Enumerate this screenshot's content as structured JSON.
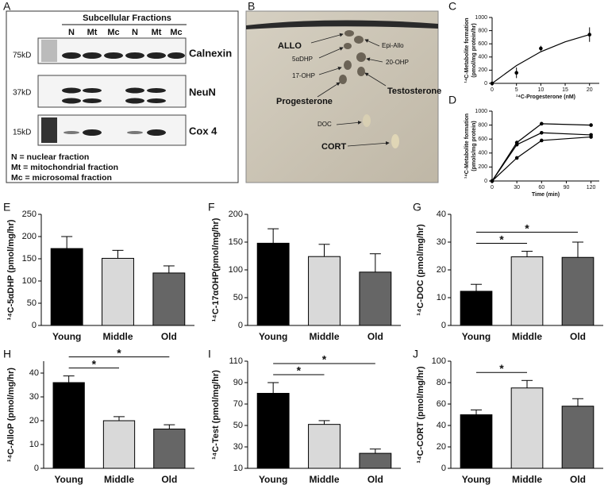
{
  "blot": {
    "label": "A",
    "title": "Subcellular Fractions",
    "lanes": [
      "N",
      "Mt",
      "Mc",
      "N",
      "Mt",
      "Mc"
    ],
    "markers": [
      "75kD",
      "37kD",
      "15kD"
    ],
    "proteins": [
      "Calnexin",
      "NeuN",
      "Cox 4"
    ],
    "legend": [
      "N = nuclear fraction",
      "Mt = mitochondrial fraction",
      "Mc = microsomal fraction"
    ]
  },
  "tlc": {
    "label": "B",
    "spots": [
      "ALLO",
      "Epi-Allo",
      "5αDHP",
      "20-OHP",
      "17-OHP",
      "Progesterone",
      "Testosterone",
      "DOC",
      "CORT"
    ]
  },
  "chart_data": [
    {
      "type": "line",
      "label": "C",
      "xlabel": "¹⁴C-Progesterone (nM)",
      "ylabel": [
        "¹⁴C-Metabolite formation",
        "(pmol/mg protein/hr)"
      ],
      "xlim": [
        0,
        22
      ],
      "xticks": [
        0,
        5,
        10,
        15,
        20
      ],
      "ylim": [
        0,
        1000
      ],
      "yticks": [
        0,
        200,
        400,
        600,
        800,
        1000
      ],
      "series": [
        {
          "color": "#000000",
          "line": true,
          "markers": false,
          "x": [
            0,
            5,
            10,
            15,
            20
          ],
          "values": [
            0,
            270,
            480,
            630,
            740
          ]
        },
        {
          "color": "#000000",
          "line": false,
          "markers": true,
          "x": [
            0,
            5,
            10,
            20
          ],
          "values": [
            0,
            160,
            530,
            740
          ],
          "errors": [
            0,
            80,
            40,
            110
          ]
        }
      ]
    },
    {
      "type": "line",
      "label": "D",
      "xlabel": "Time (min)",
      "ylabel": [
        "¹⁴C-Metabolite formation",
        "(pmols/mg protein)"
      ],
      "xlim": [
        0,
        130
      ],
      "xticks": [
        0,
        30,
        60,
        90,
        120
      ],
      "ylim": [
        0,
        1000
      ],
      "yticks": [
        0,
        200,
        400,
        600,
        800,
        1000
      ],
      "series": [
        {
          "color": "#000000",
          "line": true,
          "markers": true,
          "x": [
            0,
            30,
            60,
            120
          ],
          "values": [
            0,
            550,
            820,
            800
          ]
        },
        {
          "color": "#000000",
          "line": true,
          "markers": true,
          "x": [
            0,
            30,
            60,
            120
          ],
          "values": [
            0,
            520,
            690,
            660
          ]
        },
        {
          "color": "#000000",
          "line": true,
          "markers": true,
          "x": [
            0,
            30,
            60,
            120
          ],
          "values": [
            0,
            330,
            580,
            630
          ]
        }
      ]
    },
    {
      "type": "bar",
      "label": "E",
      "ylabel": "¹⁴C-5αDHP (pmol/mg/hr)",
      "categories": [
        "Young",
        "Middle",
        "Old"
      ],
      "values": [
        173,
        151,
        118
      ],
      "errors": [
        27,
        18,
        16
      ],
      "colors": [
        "#000000",
        "#d9d9d9",
        "#666666"
      ],
      "ylim": [
        0,
        250
      ],
      "yticks": [
        0,
        50,
        100,
        150,
        200,
        250
      ]
    },
    {
      "type": "bar",
      "label": "F",
      "ylabel": "¹⁴C-17αOHP(pmol/mg/hr)",
      "categories": [
        "Young",
        "Middle",
        "Old"
      ],
      "values": [
        148,
        124,
        96
      ],
      "errors": [
        26,
        22,
        33
      ],
      "colors": [
        "#000000",
        "#d9d9d9",
        "#666666"
      ],
      "ylim": [
        0,
        200
      ],
      "yticks": [
        0,
        50,
        100,
        150,
        200
      ]
    },
    {
      "type": "bar",
      "label": "G",
      "ylabel": "¹⁴C-DOC (pmol/mg/hr)",
      "categories": [
        "Young",
        "Middle",
        "Old"
      ],
      "values": [
        12.3,
        24.7,
        24.5
      ],
      "errors": [
        2.5,
        2,
        5.5
      ],
      "colors": [
        "#000000",
        "#d9d9d9",
        "#666666"
      ],
      "ylim": [
        0,
        40
      ],
      "yticks": [
        0,
        10,
        20,
        30,
        40
      ],
      "significance": [
        {
          "pair": [
            "Young",
            "Middle"
          ],
          "label": "*"
        },
        {
          "pair": [
            "Young",
            "Old"
          ],
          "label": "*"
        }
      ]
    },
    {
      "type": "bar",
      "label": "H",
      "ylabel": "¹⁴C-AlloP (pmol/mg/hr)",
      "categories": [
        "Young",
        "Middle",
        "Old"
      ],
      "values": [
        36,
        20,
        16.5
      ],
      "errors": [
        2.8,
        1.7,
        1.8
      ],
      "colors": [
        "#000000",
        "#d9d9d9",
        "#666666"
      ],
      "ylim": [
        0,
        45
      ],
      "yticks": [
        0,
        10,
        20,
        30,
        40
      ],
      "significance": [
        {
          "pair": [
            "Young",
            "Middle"
          ],
          "label": "*"
        },
        {
          "pair": [
            "Young",
            "Old"
          ],
          "label": "*"
        }
      ]
    },
    {
      "type": "bar",
      "label": "I",
      "ylabel": "¹⁴C-Test (pmol/mg/hr)",
      "categories": [
        "Young",
        "Middle",
        "Old"
      ],
      "values": [
        80,
        51,
        24
      ],
      "errors": [
        10,
        3.5,
        4
      ],
      "colors": [
        "#000000",
        "#d9d9d9",
        "#666666"
      ],
      "ylim": [
        10,
        110
      ],
      "yticks": [
        10,
        30,
        50,
        70,
        90,
        110
      ],
      "significance": [
        {
          "pair": [
            "Young",
            "Middle"
          ],
          "label": "*"
        },
        {
          "pair": [
            "Young",
            "Old"
          ],
          "label": "*"
        }
      ]
    },
    {
      "type": "bar",
      "label": "J",
      "ylabel": "¹⁴C-CORT (pmol/mg/hr)",
      "categories": [
        "Young",
        "Middle",
        "Old"
      ],
      "values": [
        50,
        75,
        58
      ],
      "errors": [
        4.5,
        7,
        7
      ],
      "colors": [
        "#000000",
        "#d9d9d9",
        "#666666"
      ],
      "ylim": [
        0,
        100
      ],
      "yticks": [
        0,
        20,
        40,
        60,
        80,
        100
      ],
      "significance": [
        {
          "pair": [
            "Young",
            "Middle"
          ],
          "label": "*"
        }
      ]
    }
  ]
}
